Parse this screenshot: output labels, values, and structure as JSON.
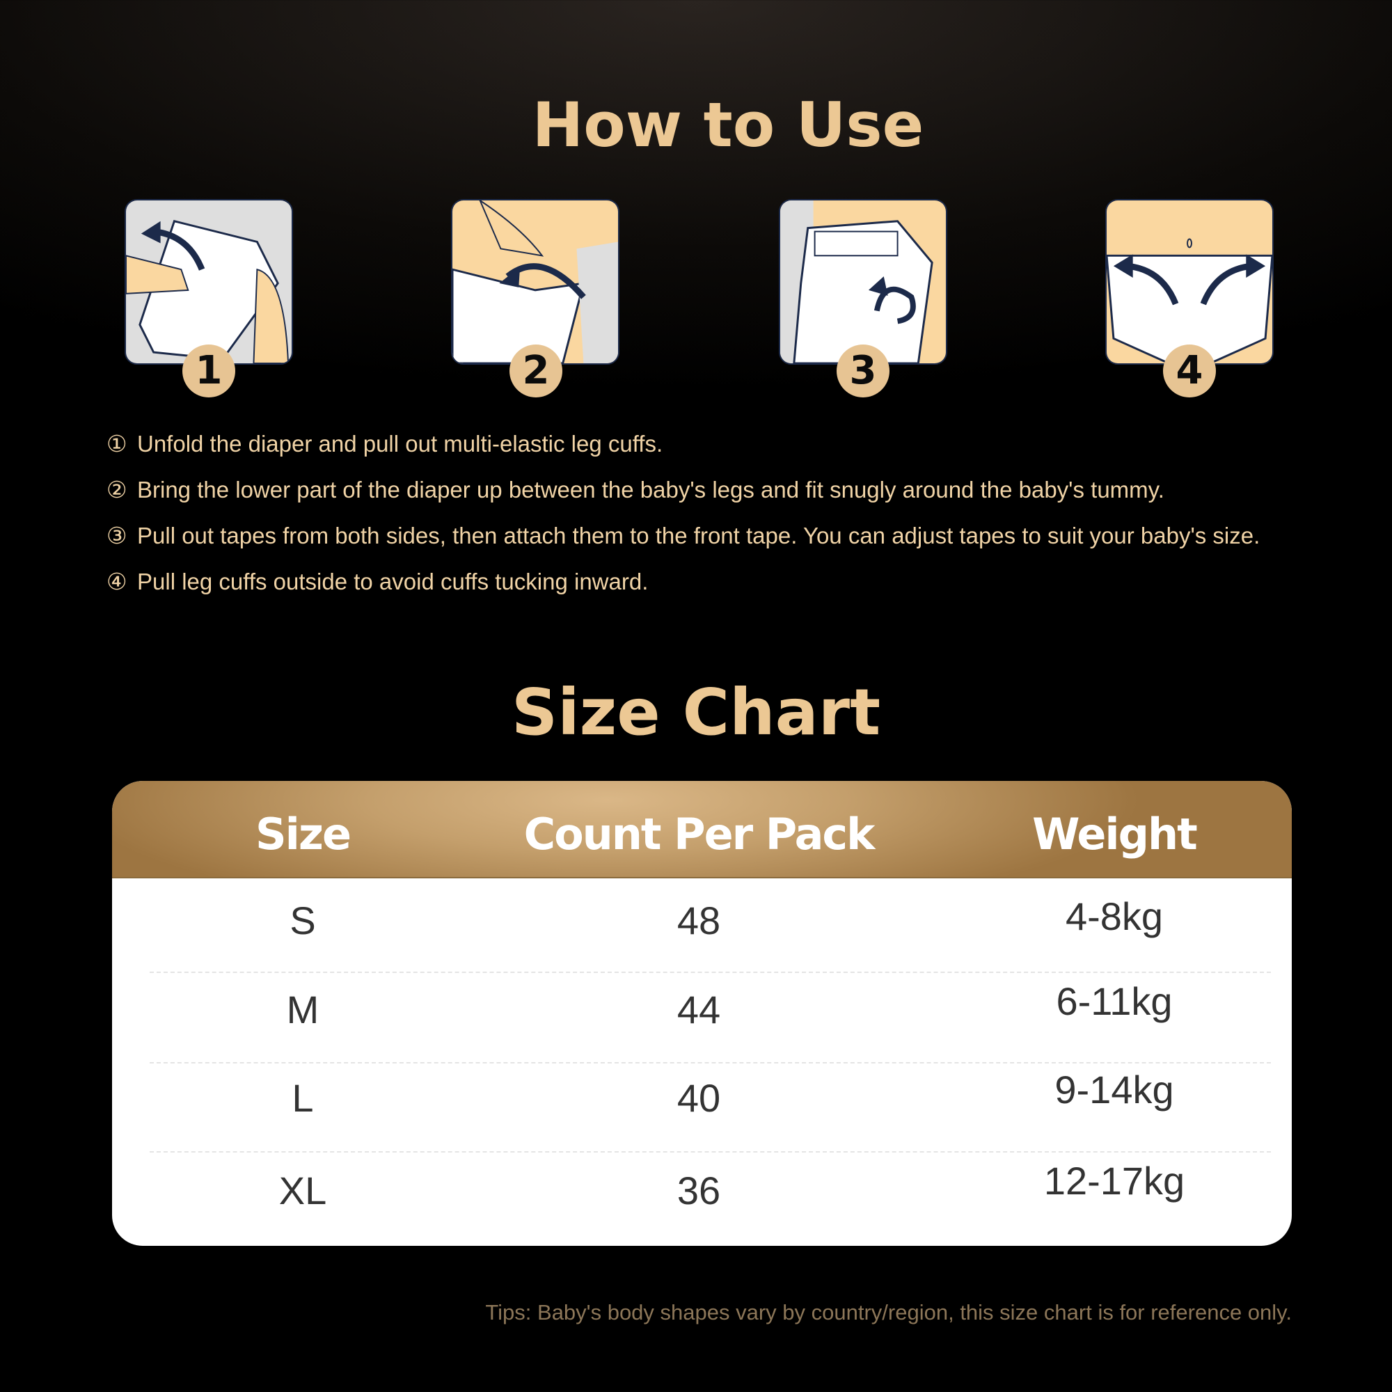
{
  "how_to_use": {
    "title": "How to Use",
    "step_badges": [
      "1",
      "2",
      "3",
      "4"
    ],
    "steps": [
      {
        "num": "①",
        "text": "Unfold the diaper and pull out multi-elastic leg cuffs."
      },
      {
        "num": "②",
        "text": "Bring the lower part of the diaper up between the baby's legs and fit snugly around the baby's tummy."
      },
      {
        "num": "③",
        "text": "Pull out tapes from both sides, then attach them to the front tape. You can adjust tapes to suit your baby's size."
      },
      {
        "num": "④",
        "text": "Pull leg cuffs outside to avoid cuffs tucking inward."
      }
    ]
  },
  "size_chart": {
    "title": "Size Chart",
    "headers": [
      "Size",
      "Count Per Pack",
      "Weight"
    ],
    "rows": [
      [
        "S",
        "48",
        "4-8kg"
      ],
      [
        "M",
        "44",
        "6-11kg"
      ],
      [
        "L",
        "40",
        "9-14kg"
      ],
      [
        "XL",
        "36",
        "12-17kg"
      ]
    ],
    "tips": "Tips: Baby's body shapes vary by country/region, this size chart is for reference only."
  },
  "colors": {
    "gold": "#ecc894",
    "navy": "#1c2a4a",
    "skin": "#fad7a0"
  }
}
